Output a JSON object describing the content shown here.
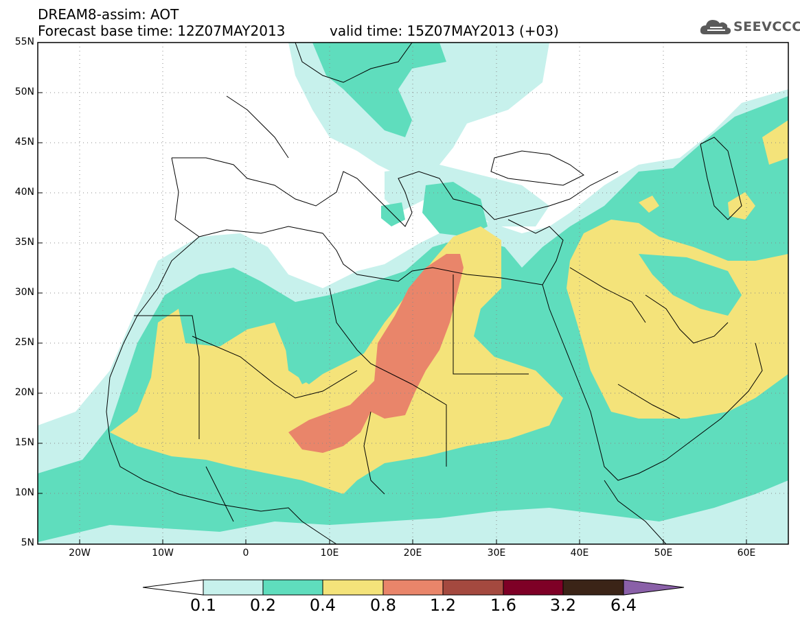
{
  "header": {
    "title_line1": "DREAM8-assim: AOT",
    "title_line2": "Forecast base time: 12Z07MAY2013",
    "valid_time": "valid time: 15Z07MAY2013 (+03)"
  },
  "logo": {
    "text": "SEEVCCC",
    "icon": "cloud-icon"
  },
  "map": {
    "lon_range": [
      -25,
      65
    ],
    "lat_range": [
      5,
      55
    ],
    "lat_labels": [
      "55N",
      "50N",
      "45N",
      "40N",
      "35N",
      "30N",
      "25N",
      "20N",
      "15N",
      "10N",
      "5N"
    ],
    "lon_labels": [
      "20W",
      "10W",
      "0",
      "10E",
      "20E",
      "30E",
      "40E",
      "50E",
      "60E"
    ],
    "grid": "dotted",
    "variable": "AOT"
  },
  "colorbar": {
    "labels": [
      "0.1",
      "0.2",
      "0.4",
      "0.8",
      "1.2",
      "1.6",
      "3.2",
      "6.4"
    ],
    "colors": [
      "#ffffff",
      "#c7f1ec",
      "#5fddbd",
      "#f4e37a",
      "#e9856a",
      "#a4493f",
      "#7e0026",
      "#3b2417",
      "#8a60a8"
    ],
    "orientation": "horizontal",
    "extend": "both"
  },
  "colors": {
    "very_low": "#c7f1ec",
    "low": "#5fddbd",
    "medium": "#f4e37a",
    "high": "#e9856a"
  }
}
